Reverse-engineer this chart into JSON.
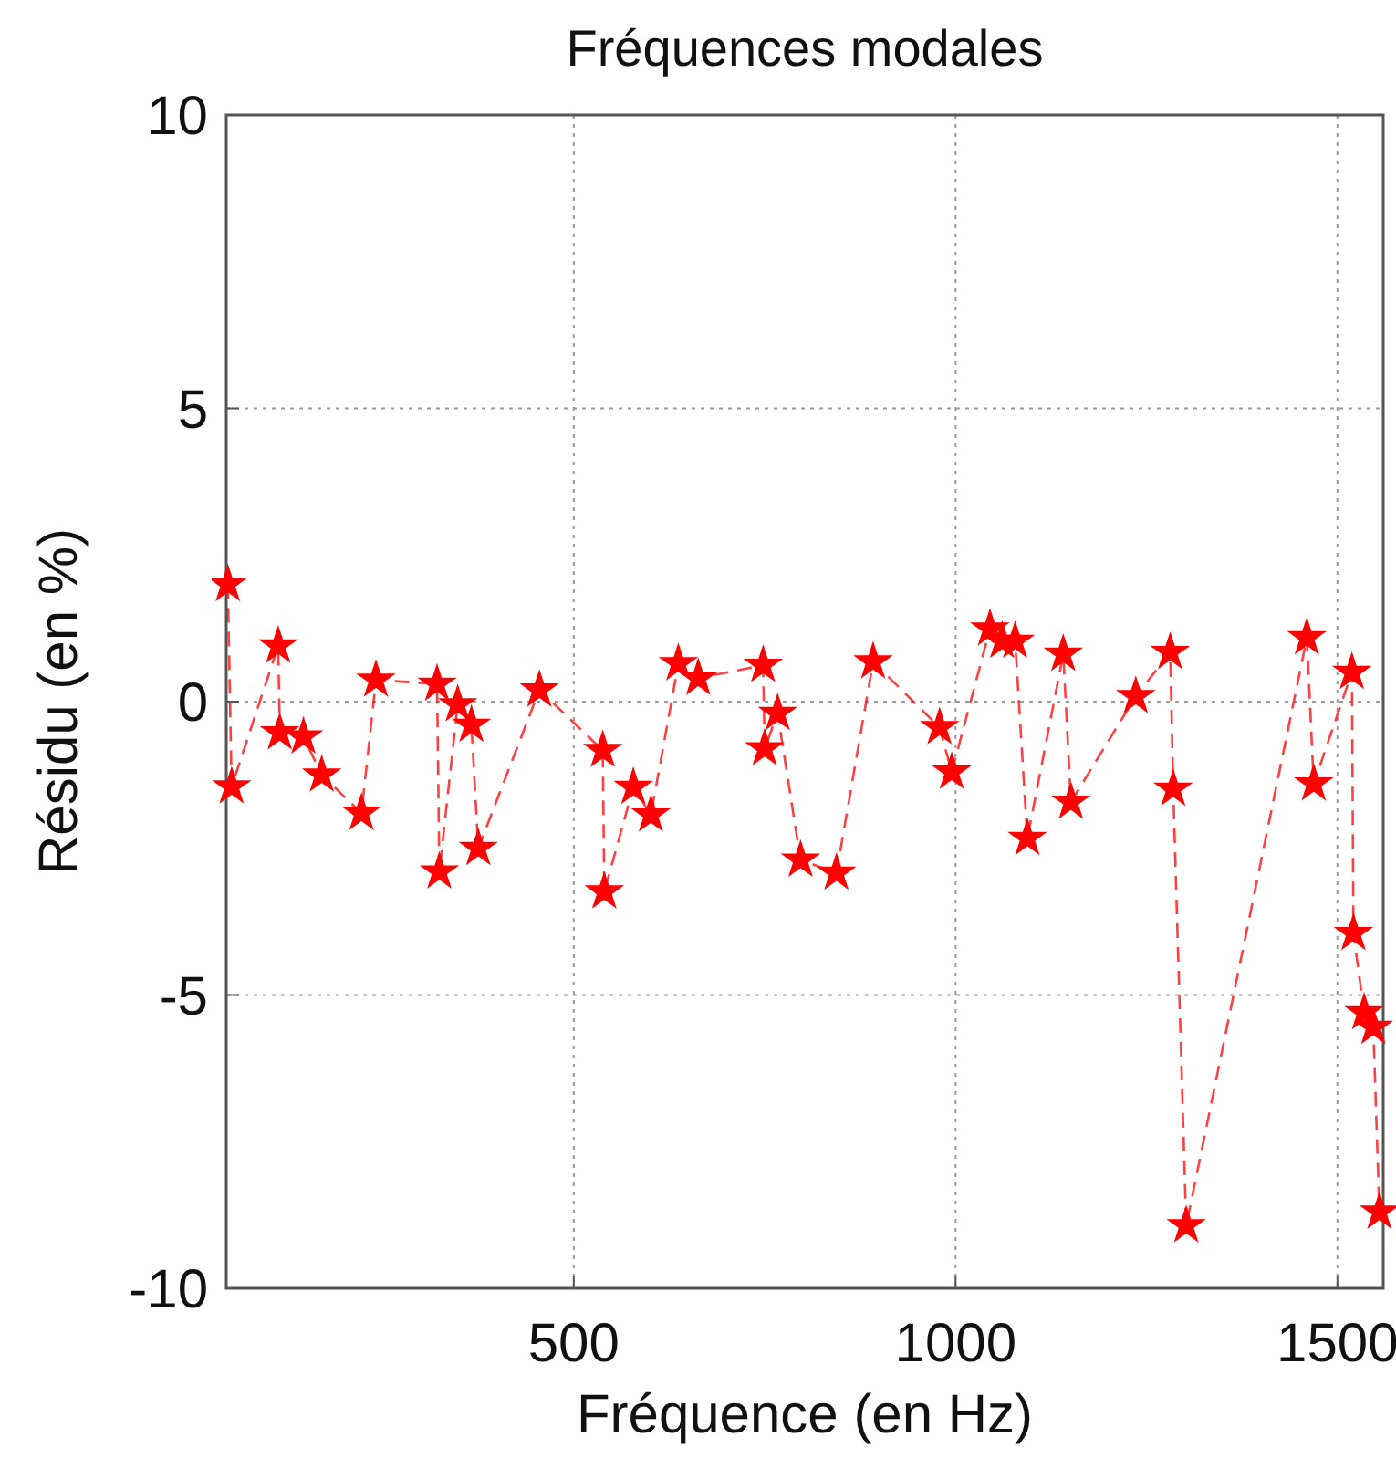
{
  "chart_data": {
    "type": "line",
    "title": "Fréquences modales",
    "xlabel": "Fréquence (en Hz)",
    "ylabel": "Résidu (en %)",
    "xlim": [
      45,
      1560
    ],
    "xticks": [
      500,
      1000,
      1500
    ],
    "ylim": [
      -10,
      10
    ],
    "yticks": [
      -10,
      -5,
      0,
      5,
      10
    ],
    "grid": true,
    "marker": "star",
    "line_style": "dashed",
    "series": [
      {
        "color": "#ff0000",
        "x": [
          47,
          52,
          113,
          115,
          146,
          170,
          222,
          241,
          321,
          324,
          348,
          366,
          375,
          455,
          538,
          540,
          578,
          601,
          637,
          663,
          748,
          750,
          767,
          797,
          844,
          892,
          979,
          995,
          1045,
          1061,
          1078,
          1094,
          1141,
          1151,
          1236,
          1281,
          1285,
          1302,
          1460,
          1469,
          1519,
          1521,
          1535,
          1547,
          1555
        ],
        "values": [
          2.0,
          -1.45,
          0.95,
          -0.53,
          -0.6,
          -1.25,
          -1.9,
          0.37,
          0.3,
          -2.9,
          -0.05,
          -0.4,
          -2.5,
          0.2,
          -0.83,
          -3.24,
          -1.46,
          -1.93,
          0.65,
          0.4,
          0.62,
          -0.8,
          -0.2,
          -2.7,
          -2.92,
          0.68,
          -0.44,
          -1.2,
          1.24,
          1.03,
          1.03,
          -2.33,
          0.81,
          -1.71,
          0.09,
          0.84,
          -1.49,
          -8.93,
          1.09,
          -1.4,
          0.5,
          -3.95,
          -5.3,
          -5.55,
          -8.7
        ]
      }
    ]
  }
}
